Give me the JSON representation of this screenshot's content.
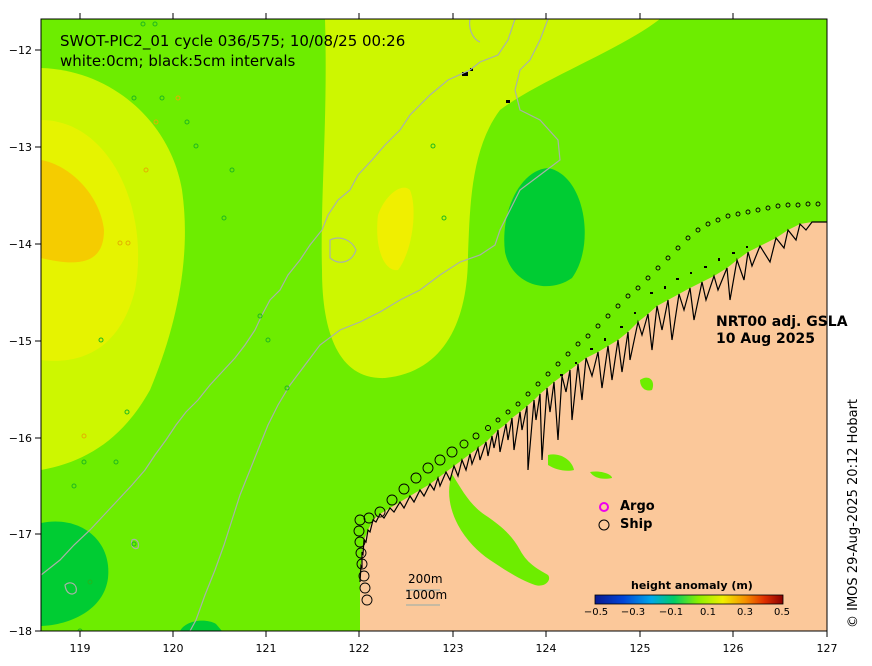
{
  "title": {
    "line1": "SWOT-PIC2_01 cycle 036/575; 10/08/25 00:26",
    "line2": "white:0cm; black:5cm intervals"
  },
  "product": {
    "line1": "NRT00 adj. GSLA",
    "line2": "10 Aug 2025"
  },
  "credit": "© IMOS 29-Aug-2025 20:12 Hobart",
  "legend": {
    "argo": "Argo",
    "ship": "Ship"
  },
  "depth_scale": {
    "d200": "200m",
    "d1000": "1000m"
  },
  "colorbar": {
    "title": "height anomaly (m)",
    "ticks": [
      "−0.5",
      "−0.3",
      "−0.1",
      "0.1",
      "0.3",
      "0.5"
    ]
  },
  "axes": {
    "x_ticks": [
      "119",
      "120",
      "121",
      "122",
      "123",
      "124",
      "125",
      "126",
      "127"
    ],
    "y_ticks": [
      "−12",
      "−13",
      "−14",
      "−15",
      "−16",
      "−17",
      "−18"
    ]
  },
  "colors": {
    "land": "#fbc89a",
    "sla_base": "#6ded00",
    "sla_high": "#cdf700",
    "sla_higher": "#f0ef00",
    "sla_highest": "#f5cc00",
    "sla_low": "#00cc33",
    "argo": "#ee00ee"
  }
}
